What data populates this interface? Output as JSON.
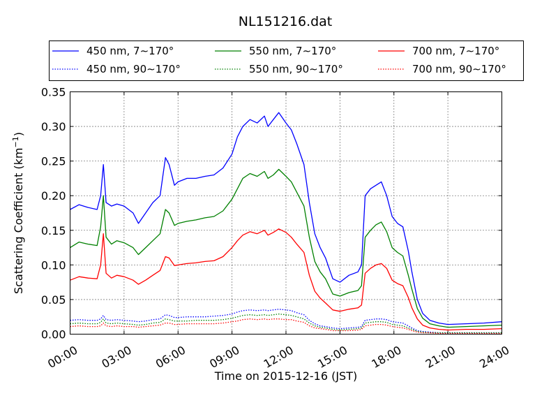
{
  "chart_data": {
    "type": "line",
    "title": "NL151216.dat",
    "xlabel": "Time on 2015-12-16 (JST)",
    "ylabel": "Scattering Coefficient (km",
    "ylabel_sup": "−1",
    "ylabel_tail": ")",
    "x_unit": "hours since 2015-12-16 00:00 JST",
    "xlim": [
      0,
      24
    ],
    "ylim": [
      0,
      0.35
    ],
    "x_ticks": [
      0,
      3,
      6,
      9,
      12,
      15,
      18,
      21,
      24
    ],
    "x_tick_labels": [
      "00:00",
      "03:00",
      "06:00",
      "09:00",
      "12:00",
      "15:00",
      "18:00",
      "21:00",
      "24:00"
    ],
    "y_ticks": [
      0,
      0.05,
      0.1,
      0.15,
      0.2,
      0.25,
      0.3,
      0.35
    ],
    "y_tick_labels": [
      "0.00",
      "0.05",
      "0.10",
      "0.15",
      "0.20",
      "0.25",
      "0.30",
      "0.35"
    ],
    "grid": true,
    "legend_position": "top",
    "x": [
      0,
      0.5,
      1,
      1.5,
      1.7,
      1.85,
      2,
      2.3,
      2.6,
      3,
      3.5,
      3.8,
      4.2,
      4.6,
      5,
      5.3,
      5.5,
      5.8,
      6,
      6.5,
      7,
      7.5,
      8,
      8.5,
      9,
      9.3,
      9.6,
      10,
      10.4,
      10.8,
      11,
      11.3,
      11.6,
      12,
      12.3,
      12.6,
      13,
      13.3,
      13.6,
      13.9,
      14.2,
      14.6,
      15,
      15.5,
      16,
      16.2,
      16.4,
      16.7,
      17,
      17.3,
      17.6,
      17.9,
      18.2,
      18.5,
      18.8,
      19,
      19.3,
      19.6,
      20,
      20.5,
      21,
      22,
      23,
      24
    ],
    "series": [
      {
        "name": "450 nm, 7∼170°",
        "color": "#0000ff",
        "style": "solid",
        "values": [
          0.18,
          0.187,
          0.183,
          0.18,
          0.2,
          0.245,
          0.19,
          0.185,
          0.188,
          0.185,
          0.175,
          0.16,
          0.175,
          0.19,
          0.2,
          0.255,
          0.245,
          0.215,
          0.22,
          0.225,
          0.225,
          0.228,
          0.23,
          0.24,
          0.26,
          0.285,
          0.3,
          0.31,
          0.305,
          0.315,
          0.3,
          0.31,
          0.32,
          0.305,
          0.295,
          0.275,
          0.245,
          0.19,
          0.145,
          0.125,
          0.11,
          0.08,
          0.075,
          0.085,
          0.09,
          0.1,
          0.2,
          0.21,
          0.215,
          0.22,
          0.2,
          0.17,
          0.16,
          0.155,
          0.12,
          0.09,
          0.05,
          0.03,
          0.02,
          0.016,
          0.014,
          0.015,
          0.016,
          0.018
        ]
      },
      {
        "name": "550 nm, 7∼170°",
        "color": "#008000",
        "style": "solid",
        "values": [
          0.125,
          0.133,
          0.13,
          0.128,
          0.155,
          0.2,
          0.14,
          0.13,
          0.135,
          0.132,
          0.125,
          0.115,
          0.125,
          0.135,
          0.145,
          0.18,
          0.175,
          0.157,
          0.16,
          0.163,
          0.165,
          0.168,
          0.17,
          0.178,
          0.195,
          0.21,
          0.225,
          0.232,
          0.228,
          0.235,
          0.225,
          0.23,
          0.238,
          0.228,
          0.22,
          0.205,
          0.185,
          0.14,
          0.105,
          0.09,
          0.08,
          0.058,
          0.055,
          0.06,
          0.063,
          0.07,
          0.14,
          0.15,
          0.158,
          0.162,
          0.148,
          0.125,
          0.118,
          0.113,
          0.085,
          0.065,
          0.037,
          0.023,
          0.015,
          0.012,
          0.01,
          0.011,
          0.012,
          0.013
        ]
      },
      {
        "name": "700 nm, 7∼170°",
        "color": "#ff0000",
        "style": "solid",
        "values": [
          0.078,
          0.083,
          0.081,
          0.08,
          0.1,
          0.145,
          0.088,
          0.081,
          0.085,
          0.083,
          0.078,
          0.072,
          0.078,
          0.085,
          0.092,
          0.112,
          0.11,
          0.099,
          0.1,
          0.102,
          0.103,
          0.105,
          0.106,
          0.112,
          0.125,
          0.135,
          0.143,
          0.148,
          0.145,
          0.15,
          0.143,
          0.147,
          0.152,
          0.147,
          0.14,
          0.13,
          0.118,
          0.085,
          0.062,
          0.052,
          0.045,
          0.035,
          0.033,
          0.036,
          0.038,
          0.042,
          0.088,
          0.095,
          0.1,
          0.102,
          0.095,
          0.078,
          0.073,
          0.07,
          0.053,
          0.038,
          0.022,
          0.013,
          0.009,
          0.007,
          0.006,
          0.007,
          0.007,
          0.008
        ]
      },
      {
        "name": "450 nm, 90∼170°",
        "color": "#0000ff",
        "style": "dotted",
        "values": [
          0.02,
          0.021,
          0.02,
          0.02,
          0.022,
          0.027,
          0.021,
          0.02,
          0.021,
          0.02,
          0.019,
          0.018,
          0.019,
          0.021,
          0.022,
          0.028,
          0.027,
          0.024,
          0.024,
          0.025,
          0.025,
          0.025,
          0.026,
          0.027,
          0.029,
          0.032,
          0.034,
          0.035,
          0.034,
          0.035,
          0.034,
          0.035,
          0.036,
          0.035,
          0.034,
          0.031,
          0.028,
          0.02,
          0.015,
          0.012,
          0.011,
          0.009,
          0.008,
          0.009,
          0.01,
          0.011,
          0.02,
          0.021,
          0.022,
          0.022,
          0.021,
          0.018,
          0.017,
          0.016,
          0.012,
          0.009,
          0.005,
          0.004,
          0.003,
          0.002,
          0.002,
          0.002,
          0.002,
          0.002
        ]
      },
      {
        "name": "550 nm, 90∼170°",
        "color": "#008000",
        "style": "dotted",
        "values": [
          0.015,
          0.016,
          0.015,
          0.015,
          0.017,
          0.022,
          0.016,
          0.015,
          0.016,
          0.015,
          0.014,
          0.013,
          0.014,
          0.016,
          0.017,
          0.022,
          0.021,
          0.019,
          0.019,
          0.019,
          0.02,
          0.02,
          0.02,
          0.021,
          0.023,
          0.025,
          0.027,
          0.028,
          0.027,
          0.028,
          0.027,
          0.028,
          0.029,
          0.028,
          0.027,
          0.025,
          0.022,
          0.016,
          0.012,
          0.01,
          0.009,
          0.007,
          0.006,
          0.007,
          0.008,
          0.009,
          0.016,
          0.017,
          0.018,
          0.018,
          0.017,
          0.014,
          0.013,
          0.012,
          0.009,
          0.007,
          0.004,
          0.003,
          0.002,
          0.002,
          0.002,
          0.002,
          0.002,
          0.002
        ]
      },
      {
        "name": "700 nm, 90∼170°",
        "color": "#ff0000",
        "style": "dotted",
        "values": [
          0.011,
          0.012,
          0.011,
          0.011,
          0.012,
          0.016,
          0.012,
          0.011,
          0.012,
          0.011,
          0.011,
          0.01,
          0.011,
          0.012,
          0.013,
          0.016,
          0.016,
          0.014,
          0.014,
          0.015,
          0.015,
          0.015,
          0.015,
          0.016,
          0.018,
          0.019,
          0.021,
          0.022,
          0.021,
          0.022,
          0.021,
          0.022,
          0.022,
          0.021,
          0.021,
          0.019,
          0.017,
          0.012,
          0.009,
          0.008,
          0.007,
          0.005,
          0.005,
          0.005,
          0.006,
          0.007,
          0.012,
          0.013,
          0.014,
          0.014,
          0.013,
          0.011,
          0.01,
          0.009,
          0.007,
          0.005,
          0.003,
          0.002,
          0.002,
          0.001,
          0.001,
          0.001,
          0.001,
          0.001
        ]
      }
    ]
  }
}
